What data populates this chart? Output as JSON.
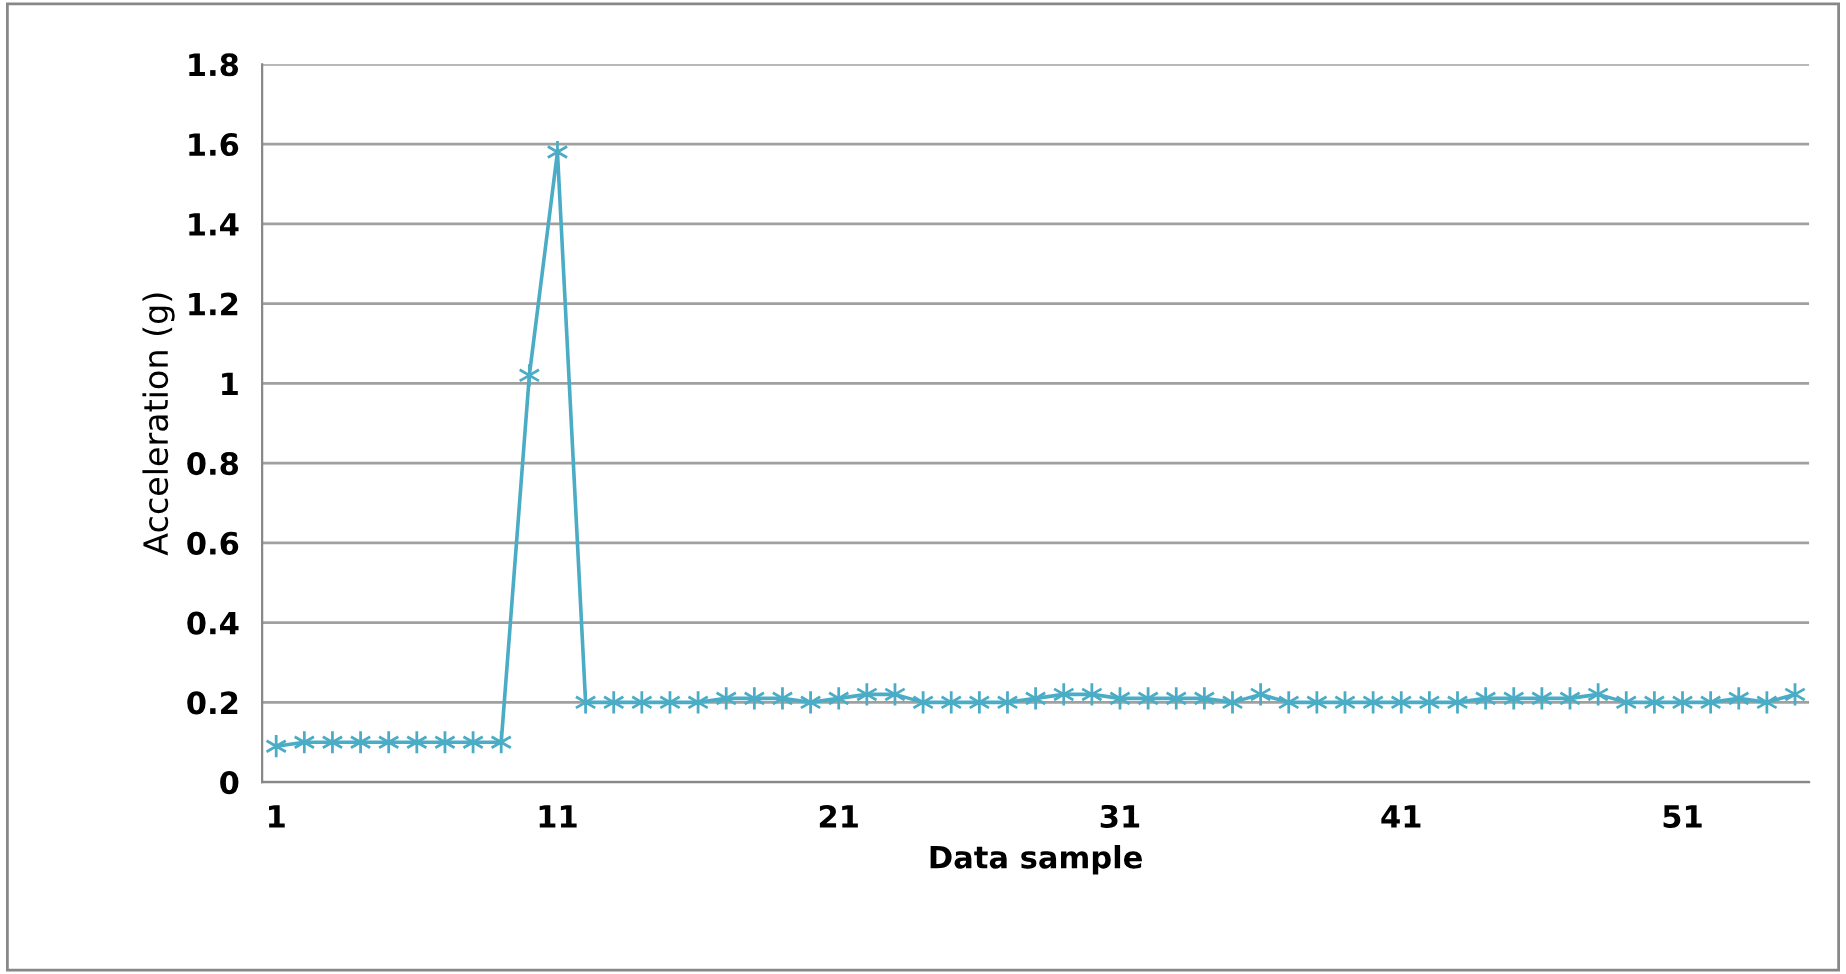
{
  "chart_data": {
    "type": "line",
    "xlabel": "Data sample",
    "ylabel": "Acceleration (g)",
    "x": [
      1,
      2,
      3,
      4,
      5,
      6,
      7,
      8,
      9,
      10,
      11,
      12,
      13,
      14,
      15,
      16,
      17,
      18,
      19,
      20,
      21,
      22,
      23,
      24,
      25,
      26,
      27,
      28,
      29,
      30,
      31,
      32,
      33,
      34,
      35,
      36,
      37,
      38,
      39,
      40,
      41,
      42,
      43,
      44,
      45,
      46,
      47,
      48,
      49,
      50,
      51,
      52,
      53,
      54,
      55
    ],
    "series": [
      {
        "color": "#4bacc6",
        "values": [
          0.09,
          0.1,
          0.1,
          0.1,
          0.1,
          0.1,
          0.1,
          0.1,
          0.1,
          1.02,
          1.58,
          0.2,
          0.2,
          0.2,
          0.2,
          0.2,
          0.21,
          0.21,
          0.21,
          0.2,
          0.21,
          0.22,
          0.22,
          0.2,
          0.2,
          0.2,
          0.2,
          0.21,
          0.22,
          0.22,
          0.21,
          0.21,
          0.21,
          0.21,
          0.2,
          0.22,
          0.2,
          0.2,
          0.2,
          0.2,
          0.2,
          0.2,
          0.2,
          0.21,
          0.21,
          0.21,
          0.21,
          0.22,
          0.2,
          0.2,
          0.2,
          0.2,
          0.21,
          0.2,
          0.22
        ]
      }
    ],
    "xlim": [
      0.5,
      55.5
    ],
    "xticks": [
      1,
      11,
      21,
      31,
      41,
      51
    ],
    "ylim": [
      0,
      1.8
    ],
    "yticks": [
      0,
      0.2,
      0.4,
      0.6,
      0.8,
      1,
      1.2,
      1.4,
      1.6,
      1.8
    ],
    "grid": "y",
    "marker": "cross",
    "line_style": "solid",
    "legend": false
  }
}
